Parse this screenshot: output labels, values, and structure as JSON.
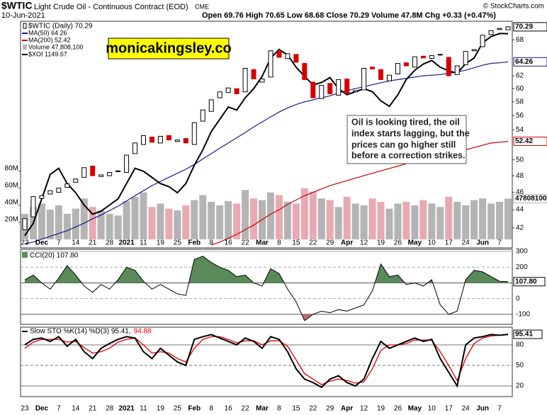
{
  "chart_data": [
    {
      "type": "candlestick",
      "title": "$WTIC",
      "subtitle": "Light Crude Oil - Continuous Contract (EOD)",
      "exchange": "CME",
      "date": "10-Jun-2021",
      "quote": "Open 69.76 High 70.65 Low 68.68 Close 70.29 Volume 47.8M Chg +0.33 (+0.47%)",
      "source": "© StockCharts.com",
      "watermark": "monicakingsley.co",
      "annotation": [
        "Oil is looking tired, the oil",
        "index starts lagging, but the",
        "prices can go higher still",
        "before a correction strikes."
      ],
      "price_name": "$WTIC (Daily) 70.29",
      "up_color": "#000000",
      "down_color": "#d40000",
      "categories": [
        "23",
        null,
        "Dec",
        null,
        "7",
        null,
        "14",
        null,
        "21",
        null,
        "28",
        null,
        "2021",
        null,
        "11",
        null,
        "19",
        null,
        "25",
        null,
        "Feb",
        null,
        "8",
        null,
        "16",
        null,
        "22",
        null,
        "Mar",
        null,
        "8",
        null,
        "15",
        null,
        "22",
        null,
        "29",
        null,
        "Apr",
        null,
        "12",
        null,
        "19",
        null,
        "26",
        null,
        "May",
        null,
        "10",
        null,
        "17",
        null,
        "24",
        null,
        "Jun",
        null,
        "7",
        null
      ],
      "open": [
        41.8,
        43.2,
        45.3,
        45.8,
        46.0,
        46.6,
        47.2,
        47.8,
        49.2,
        47.9,
        48.0,
        48.6,
        48.4,
        50.8,
        52.0,
        53.0,
        52.2,
        53.2,
        52.4,
        52.8,
        52.0,
        55.2,
        56.6,
        58.6,
        59.4,
        60.0,
        59.5,
        63.0,
        61.0,
        61.8,
        66.0,
        64.8,
        65.5,
        64.0,
        61.0,
        58.5,
        60.8,
        59.0,
        61.5,
        59.5,
        59.8,
        63.4,
        63.0,
        61.2,
        62.3,
        64.1,
        63.4,
        65.2,
        64.8,
        65.5,
        65.0,
        62.2,
        63.8,
        66.1,
        66.8,
        68.9,
        69.8,
        69.76
      ],
      "close": [
        43.0,
        45.5,
        45.6,
        46.2,
        46.5,
        47.0,
        47.6,
        49.0,
        48.0,
        48.1,
        48.4,
        48.5,
        50.6,
        52.2,
        53.2,
        52.3,
        53.1,
        52.6,
        52.6,
        52.2,
        55.0,
        56.8,
        58.3,
        59.5,
        60.1,
        59.2,
        63.2,
        61.5,
        61.5,
        66.1,
        65.0,
        65.6,
        64.2,
        61.4,
        58.6,
        60.5,
        59.2,
        61.4,
        59.3,
        59.7,
        63.2,
        63.1,
        61.4,
        62.1,
        64.0,
        63.6,
        65.1,
        64.9,
        65.3,
        65.4,
        62.0,
        63.6,
        66.0,
        66.3,
        68.8,
        69.6,
        70.0,
        70.29
      ],
      "series": [
        {
          "name": "MA(50) 64.26",
          "color": "#1a1a8c",
          "values": [
            40.3,
            40.5,
            40.8,
            41.1,
            41.4,
            41.7,
            42.1,
            42.5,
            43.0,
            43.4,
            43.9,
            44.4,
            45.0,
            45.6,
            46.2,
            46.8,
            47.3,
            47.8,
            48.3,
            48.8,
            49.4,
            50.1,
            50.8,
            51.5,
            52.2,
            52.9,
            53.6,
            54.4,
            55.1,
            55.8,
            56.5,
            57.1,
            57.6,
            58.0,
            58.3,
            58.6,
            58.9,
            59.3,
            59.7,
            60.0,
            60.3,
            60.6,
            60.9,
            61.2,
            61.4,
            61.6,
            61.8,
            62.0,
            62.1,
            62.2,
            62.4,
            62.6,
            62.9,
            63.3,
            63.7,
            64.0,
            64.1,
            64.26
          ]
        },
        {
          "name": "MA(200) 52.42",
          "color": "#cc0000",
          "values": [
            null,
            null,
            null,
            null,
            null,
            null,
            null,
            null,
            null,
            null,
            null,
            null,
            null,
            null,
            null,
            null,
            null,
            null,
            null,
            null,
            null,
            null,
            40.2,
            40.5,
            40.9,
            41.3,
            41.8,
            42.3,
            42.9,
            43.5,
            44.0,
            44.6,
            45.1,
            45.6,
            46.0,
            46.4,
            46.8,
            47.1,
            47.4,
            47.7,
            48.0,
            48.3,
            48.6,
            48.9,
            49.2,
            49.5,
            49.7,
            50.0,
            50.2,
            50.5,
            50.8,
            51.0,
            51.3,
            51.6,
            51.9,
            52.2,
            52.3,
            52.42
          ]
        },
        {
          "name": "Volume 47,808,100",
          "color": "#b4b4b4",
          "down_color": "#e8aab2",
          "axis": "y2",
          "values": [
            30000000,
            38000000,
            42000000,
            35000000,
            40000000,
            30000000,
            36000000,
            48000000,
            38000000,
            34000000,
            30000000,
            28000000,
            45000000,
            50000000,
            55000000,
            38000000,
            42000000,
            36000000,
            34000000,
            40000000,
            46000000,
            52000000,
            44000000,
            40000000,
            45000000,
            42000000,
            58000000,
            48000000,
            46000000,
            55000000,
            52000000,
            44000000,
            42000000,
            60000000,
            56000000,
            48000000,
            46000000,
            38000000,
            50000000,
            42000000,
            40000000,
            48000000,
            44000000,
            36000000,
            42000000,
            44000000,
            40000000,
            46000000,
            42000000,
            38000000,
            50000000,
            44000000,
            40000000,
            46000000,
            48000000,
            42000000,
            44000000,
            47808100
          ]
        },
        {
          "name": "$XOI 1149.67",
          "color": "#000000",
          "axis": "y3",
          "values": [
            820,
            840,
            880,
            920,
            930,
            905,
            890,
            870,
            855,
            860,
            870,
            880,
            905,
            930,
            925,
            915,
            905,
            900,
            890,
            905,
            935,
            960,
            990,
            1010,
            1030,
            1025,
            1045,
            1060,
            1080,
            1110,
            1124,
            1115,
            1095,
            1080,
            1066,
            1070,
            1078,
            1060,
            1050,
            1055,
            1060,
            1055,
            1040,
            1031,
            1050,
            1075,
            1090,
            1100,
            1106,
            1095,
            1089,
            1085,
            1101,
            1110,
            1135,
            1145,
            1150,
            1149.67
          ]
        }
      ],
      "ylim": [
        39.9,
        71.3
      ],
      "log_scale": true,
      "yticks": [
        42,
        44,
        46,
        48,
        50,
        54,
        56,
        58,
        60,
        62,
        68
      ],
      "y2lim": [
        -10000000,
        256000000
      ],
      "y2ticks": [
        {
          "value": 20000000,
          "label": "20M"
        },
        {
          "value": 40000000,
          "label": "40M"
        },
        {
          "value": 60000000,
          "label": "60M"
        },
        {
          "value": 80000000,
          "label": "80M"
        }
      ],
      "y3lim": [
        800,
        1170
      ]
    },
    {
      "type": "area",
      "label": "CCI(20) 107.80",
      "color": "#5a8a5a",
      "low_color": "#c07070",
      "values": [
        120,
        150,
        100,
        60,
        130,
        210,
        150,
        80,
        40,
        90,
        60,
        120,
        200,
        180,
        110,
        60,
        90,
        60,
        30,
        20,
        250,
        270,
        230,
        200,
        180,
        140,
        150,
        100,
        80,
        190,
        160,
        60,
        -20,
        -140,
        -100,
        -80,
        -90,
        -70,
        -80,
        -60,
        -40,
        50,
        220,
        140,
        150,
        90,
        100,
        80,
        120,
        -40,
        -100,
        -80,
        120,
        180,
        170,
        140,
        110,
        107.8
      ],
      "value_labels": [
        null,
        null,
        null,
        null,
        null,
        null,
        null,
        null,
        null,
        null,
        null,
        null,
        null,
        null,
        null,
        null,
        null,
        null,
        null,
        null,
        null,
        null,
        null,
        null,
        null,
        null,
        null,
        null,
        null,
        null,
        null,
        null,
        null,
        null,
        null,
        null,
        null,
        null,
        null,
        null,
        null,
        null,
        null,
        null,
        null,
        null,
        null,
        null,
        null,
        null,
        null,
        null,
        null,
        null,
        null,
        null,
        null,
        "107.80"
      ],
      "ylim": [
        -164,
        314
      ],
      "yticks": [
        -100,
        0,
        100,
        200,
        300
      ],
      "grid": true
    },
    {
      "type": "line",
      "legend": [
        "Slow STO %K(14) %D(3) 95.41,",
        "94.88"
      ],
      "categories": [
        "23",
        null,
        "Dec",
        null,
        "7",
        null,
        "14",
        null,
        "21",
        null,
        "28",
        null,
        "2021",
        null,
        "11",
        null,
        "19",
        null,
        "25",
        null,
        "Feb",
        null,
        "8",
        null,
        "16",
        null,
        "22",
        null,
        "Mar",
        null,
        "8",
        null,
        "15",
        null,
        "22",
        null,
        "29",
        null,
        "Apr",
        null,
        "12",
        null,
        "19",
        null,
        "26",
        null,
        "May",
        null,
        "10",
        null,
        "17",
        null,
        "24",
        null,
        "Jun",
        null,
        "7",
        null
      ],
      "series": [
        {
          "color": "#000000",
          "values": [
            80,
            88,
            90,
            85,
            92,
            78,
            88,
            70,
            60,
            75,
            82,
            88,
            92,
            90,
            70,
            60,
            75,
            65,
            55,
            50,
            88,
            92,
            95,
            90,
            85,
            80,
            90,
            85,
            75,
            92,
            88,
            70,
            45,
            30,
            25,
            18,
            30,
            35,
            25,
            20,
            30,
            60,
            85,
            75,
            80,
            85,
            90,
            85,
            88,
            60,
            40,
            20,
            80,
            90,
            92,
            95,
            94,
            95.41
          ]
        },
        {
          "color": "#dd0000",
          "values": [
            75,
            84,
            88,
            88,
            88,
            84,
            85,
            76,
            68,
            70,
            75,
            84,
            88,
            90,
            80,
            68,
            70,
            68,
            60,
            55,
            75,
            88,
            92,
            92,
            88,
            83,
            86,
            86,
            80,
            86,
            86,
            78,
            58,
            38,
            30,
            22,
            27,
            30,
            28,
            24,
            26,
            45,
            72,
            80,
            80,
            82,
            87,
            87,
            87,
            70,
            50,
            28,
            60,
            82,
            90,
            93,
            94,
            94.88
          ]
        }
      ],
      "ylim": [
        4.5,
        105.8
      ],
      "yticks": [
        20,
        50,
        80
      ],
      "grid": true
    }
  ]
}
